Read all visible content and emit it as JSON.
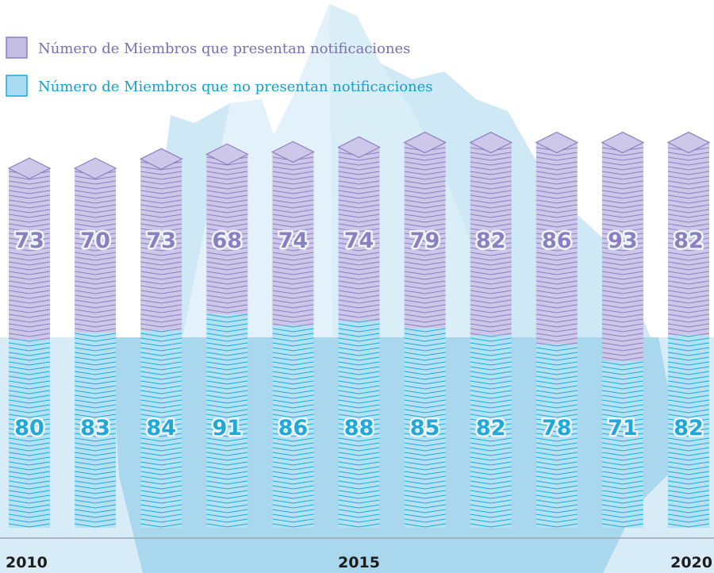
{
  "chart_data": {
    "type": "stacked-bar",
    "categories": [
      "2010",
      null,
      null,
      null,
      null,
      "2015",
      null,
      null,
      null,
      null,
      "2020"
    ],
    "series": [
      {
        "name": "Número de Miembros que presentan notificaciones",
        "color": "#8b7fc0",
        "values": [
          73,
          70,
          73,
          68,
          74,
          74,
          79,
          82,
          86,
          93,
          82
        ]
      },
      {
        "name": "Número de Miembros que no presentan notificaciones",
        "color": "#1fa8d8",
        "values": [
          80,
          83,
          84,
          91,
          86,
          88,
          85,
          82,
          78,
          71,
          82
        ]
      }
    ]
  }
}
